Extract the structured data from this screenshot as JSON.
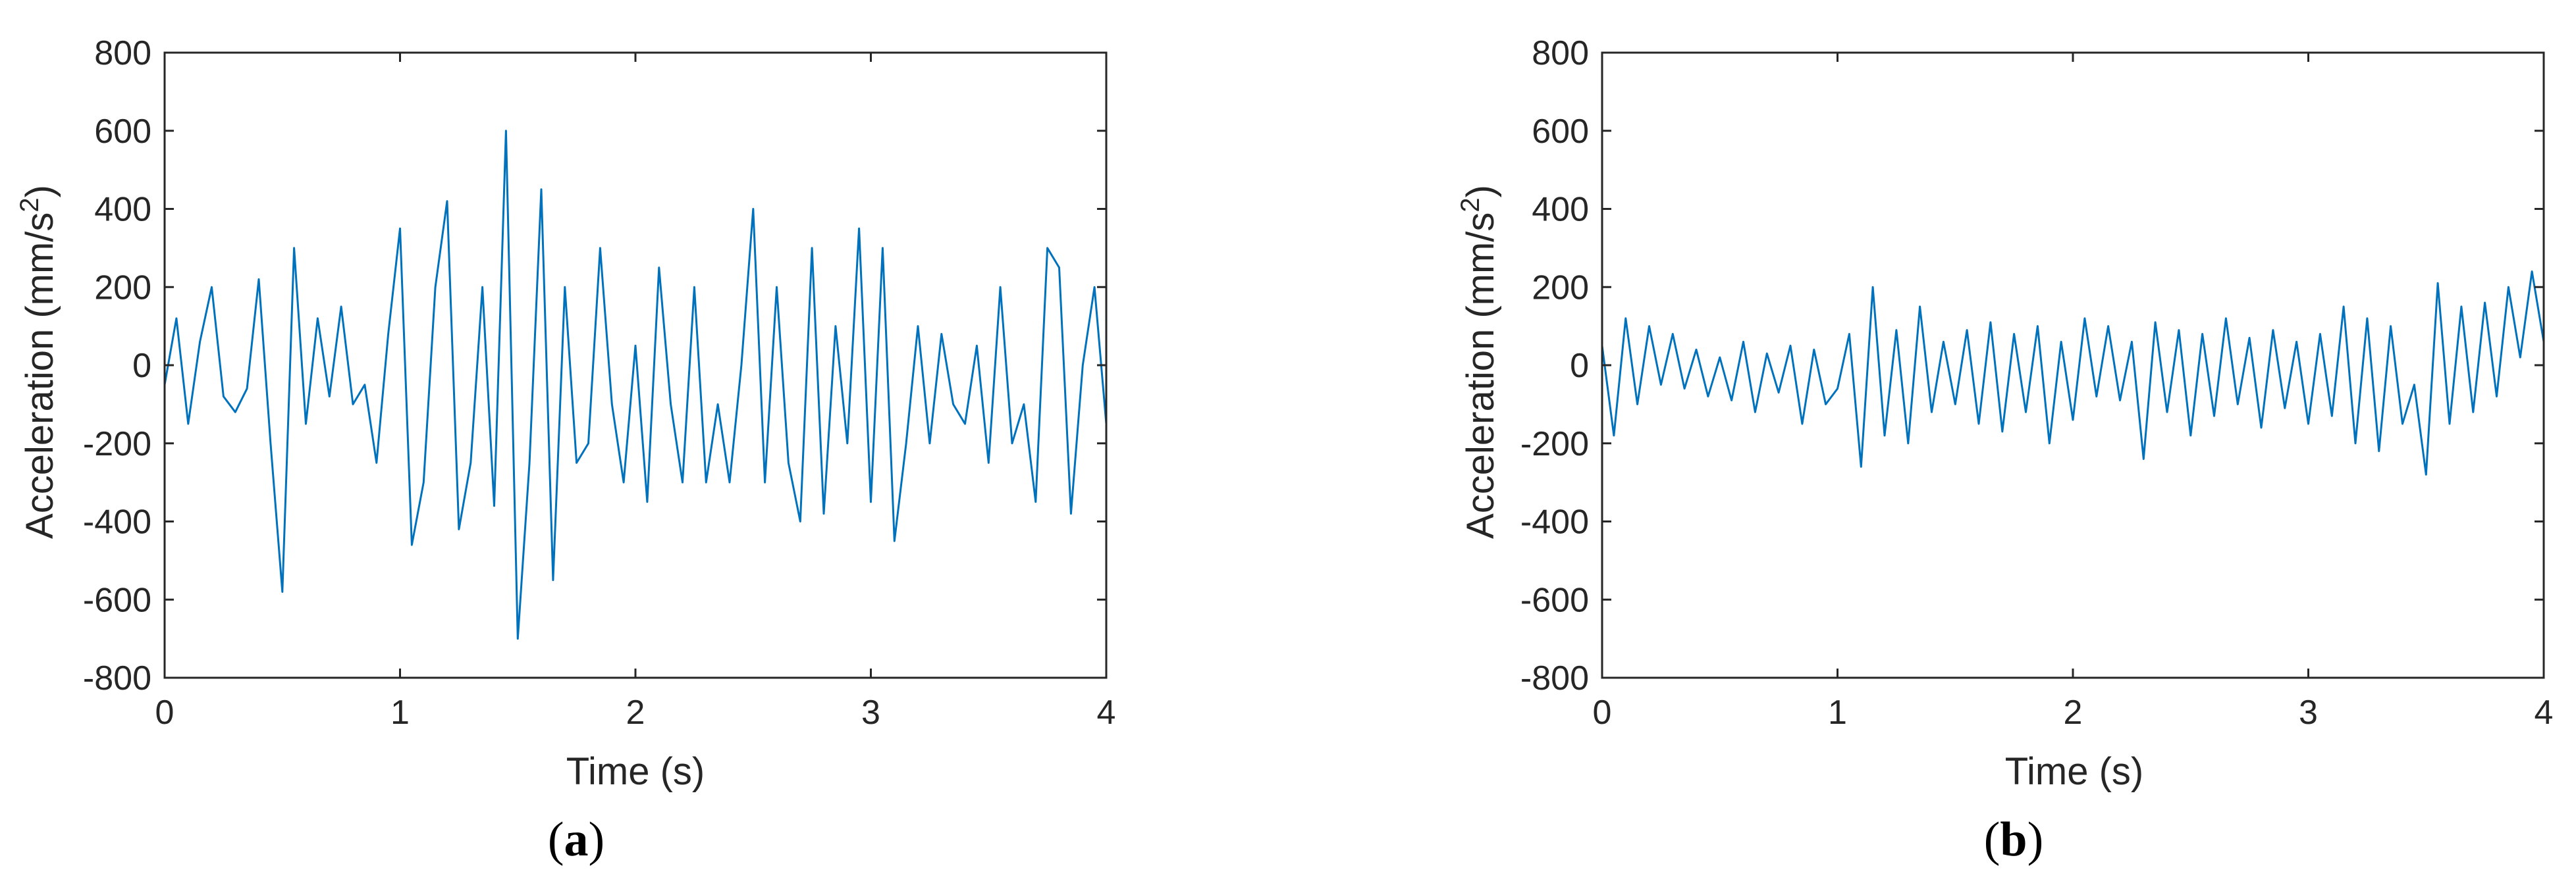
{
  "colors": {
    "trace": "#0072BD",
    "axis": "#262626"
  },
  "chart_data": [
    {
      "type": "line",
      "panel_label": "a",
      "xlabel": "Time (s)",
      "ylabel": "Acceleration (mm/s",
      "ylabel_superscript": "2",
      "ylabel_suffix": ")",
      "xlim": [
        0,
        4
      ],
      "ylim": [
        -800,
        800
      ],
      "xticks": [
        0,
        1,
        2,
        3,
        4
      ],
      "xtick_labels": [
        "0",
        "1",
        "2",
        "3",
        "4"
      ],
      "yticks": [
        800,
        600,
        400,
        200,
        0,
        -200,
        -400,
        -600,
        -800
      ],
      "ytick_labels": [
        "800",
        "600",
        "400",
        "200",
        "0",
        "-200",
        "-400",
        "-600",
        "-800"
      ],
      "grid": false,
      "series": [
        {
          "x": [
            0,
            0.05,
            0.1,
            0.15,
            0.2,
            0.25,
            0.3,
            0.35,
            0.4,
            0.45,
            0.5,
            0.55,
            0.6,
            0.65,
            0.7,
            0.75,
            0.8,
            0.85,
            0.9,
            0.95,
            1.0,
            1.05,
            1.1,
            1.15,
            1.2,
            1.25,
            1.3,
            1.35,
            1.4,
            1.45,
            1.5,
            1.55,
            1.6,
            1.65,
            1.7,
            1.75,
            1.8,
            1.85,
            1.9,
            1.95,
            2.0,
            2.05,
            2.1,
            2.15,
            2.2,
            2.25,
            2.3,
            2.35,
            2.4,
            2.45,
            2.5,
            2.55,
            2.6,
            2.65,
            2.7,
            2.75,
            2.8,
            2.85,
            2.9,
            2.95,
            3.0,
            3.05,
            3.1,
            3.15,
            3.2,
            3.25,
            3.3,
            3.35,
            3.4,
            3.45,
            3.5,
            3.55,
            3.6,
            3.65,
            3.7,
            3.75,
            3.8,
            3.85,
            3.9,
            3.95,
            4.0
          ],
          "y": [
            -50,
            120,
            -150,
            60,
            200,
            -80,
            -120,
            -60,
            220,
            -200,
            -580,
            300,
            -150,
            120,
            -80,
            150,
            -100,
            -50,
            -250,
            80,
            350,
            -460,
            -300,
            200,
            420,
            -420,
            -250,
            200,
            -360,
            600,
            -700,
            -250,
            450,
            -550,
            200,
            -250,
            -200,
            300,
            -100,
            -300,
            50,
            -350,
            250,
            -100,
            -300,
            200,
            -300,
            -100,
            -300,
            0,
            400,
            -300,
            200,
            -250,
            -400,
            300,
            -380,
            100,
            -200,
            350,
            -350,
            300,
            -450,
            -200,
            100,
            -200,
            80,
            -100,
            -150,
            50,
            -250,
            200,
            -200,
            -100,
            -350,
            300,
            250,
            -380,
            0,
            200,
            -150
          ]
        }
      ]
    },
    {
      "type": "line",
      "panel_label": "b",
      "xlabel": "Time (s)",
      "ylabel": "Acceleration (mm/s",
      "ylabel_superscript": "2",
      "ylabel_suffix": ")",
      "xlim": [
        0,
        4
      ],
      "ylim": [
        -800,
        800
      ],
      "xticks": [
        0,
        1,
        2,
        3,
        4
      ],
      "xtick_labels": [
        "0",
        "1",
        "2",
        "3",
        "4"
      ],
      "yticks": [
        800,
        600,
        400,
        200,
        0,
        -200,
        -400,
        -600,
        -800
      ],
      "ytick_labels": [
        "800",
        "600",
        "400",
        "200",
        "0",
        "-200",
        "-400",
        "-600",
        "-800"
      ],
      "grid": false,
      "series": [
        {
          "x": [
            0,
            0.05,
            0.1,
            0.15,
            0.2,
            0.25,
            0.3,
            0.35,
            0.4,
            0.45,
            0.5,
            0.55,
            0.6,
            0.65,
            0.7,
            0.75,
            0.8,
            0.85,
            0.9,
            0.95,
            1.0,
            1.05,
            1.1,
            1.15,
            1.2,
            1.25,
            1.3,
            1.35,
            1.4,
            1.45,
            1.5,
            1.55,
            1.6,
            1.65,
            1.7,
            1.75,
            1.8,
            1.85,
            1.9,
            1.95,
            2.0,
            2.05,
            2.1,
            2.15,
            2.2,
            2.25,
            2.3,
            2.35,
            2.4,
            2.45,
            2.5,
            2.55,
            2.6,
            2.65,
            2.7,
            2.75,
            2.8,
            2.85,
            2.9,
            2.95,
            3.0,
            3.05,
            3.1,
            3.15,
            3.2,
            3.25,
            3.3,
            3.35,
            3.4,
            3.45,
            3.5,
            3.55,
            3.6,
            3.65,
            3.7,
            3.75,
            3.8,
            3.85,
            3.9,
            3.95,
            4.0
          ],
          "y": [
            50,
            -180,
            120,
            -100,
            100,
            -50,
            80,
            -60,
            40,
            -80,
            20,
            -90,
            60,
            -120,
            30,
            -70,
            50,
            -150,
            40,
            -100,
            -60,
            80,
            -260,
            200,
            -180,
            90,
            -200,
            150,
            -120,
            60,
            -100,
            90,
            -150,
            110,
            -170,
            80,
            -120,
            100,
            -200,
            60,
            -140,
            120,
            -80,
            100,
            -90,
            60,
            -240,
            110,
            -120,
            90,
            -180,
            80,
            -130,
            120,
            -100,
            70,
            -160,
            90,
            -110,
            60,
            -150,
            80,
            -130,
            150,
            -200,
            120,
            -220,
            100,
            -150,
            -50,
            -280,
            210,
            -150,
            150,
            -120,
            160,
            -80,
            200,
            20,
            240,
            60
          ]
        }
      ]
    }
  ]
}
